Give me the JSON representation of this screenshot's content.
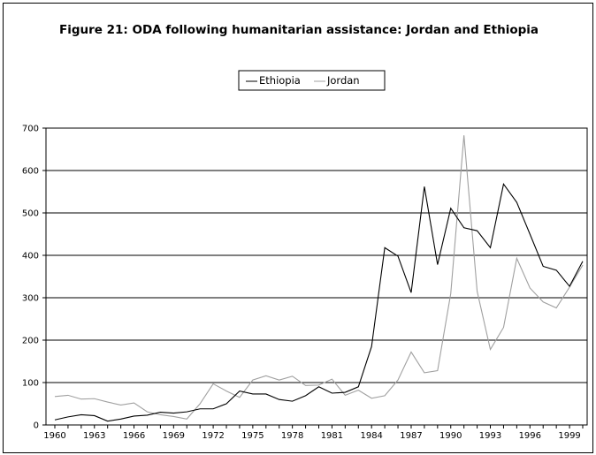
{
  "figure": {
    "title": "Figure 21: ODA following humanitarian assistance: Jordan and Ethiopia"
  },
  "chart_data": {
    "type": "line",
    "title": "Figure 21: ODA following humanitarian assistance: Jordan and Ethiopia",
    "xlabel": "",
    "ylabel": "",
    "x": [
      1960,
      1961,
      1962,
      1963,
      1964,
      1965,
      1966,
      1967,
      1968,
      1969,
      1970,
      1971,
      1972,
      1973,
      1974,
      1975,
      1976,
      1977,
      1978,
      1979,
      1980,
      1981,
      1982,
      1983,
      1984,
      1985,
      1986,
      1987,
      1988,
      1989,
      1990,
      1991,
      1992,
      1993,
      1994,
      1995,
      1996,
      1997,
      1998,
      1999,
      2000
    ],
    "x_tick_labels": [
      "1960",
      "1963",
      "1966",
      "1969",
      "1972",
      "1975",
      "1978",
      "1981",
      "1984",
      "1987",
      "1990",
      "1993",
      "1996",
      "1999"
    ],
    "ylim": [
      0,
      700
    ],
    "y_ticks": [
      0,
      100,
      200,
      300,
      400,
      500,
      600,
      700
    ],
    "grid": true,
    "legend_position": "top-center",
    "series": [
      {
        "name": "Ethiopia",
        "color": "#000000",
        "values": [
          12,
          19,
          24,
          22,
          9,
          14,
          21,
          23,
          30,
          28,
          31,
          38,
          38,
          50,
          80,
          73,
          73,
          60,
          56,
          69,
          90,
          75,
          77,
          90,
          185,
          418,
          398,
          312,
          562,
          378,
          511,
          465,
          458,
          418,
          568,
          525,
          450,
          374,
          365,
          327,
          386
        ]
      },
      {
        "name": "Jordan",
        "color": "#a0a0a0",
        "values": [
          67,
          70,
          61,
          62,
          54,
          47,
          52,
          31,
          24,
          20,
          14,
          50,
          97,
          80,
          65,
          106,
          116,
          106,
          115,
          93,
          94,
          108,
          70,
          82,
          63,
          69,
          106,
          172,
          123,
          128,
          310,
          683,
          315,
          178,
          230,
          393,
          323,
          290,
          276,
          325,
          377
        ]
      }
    ]
  }
}
